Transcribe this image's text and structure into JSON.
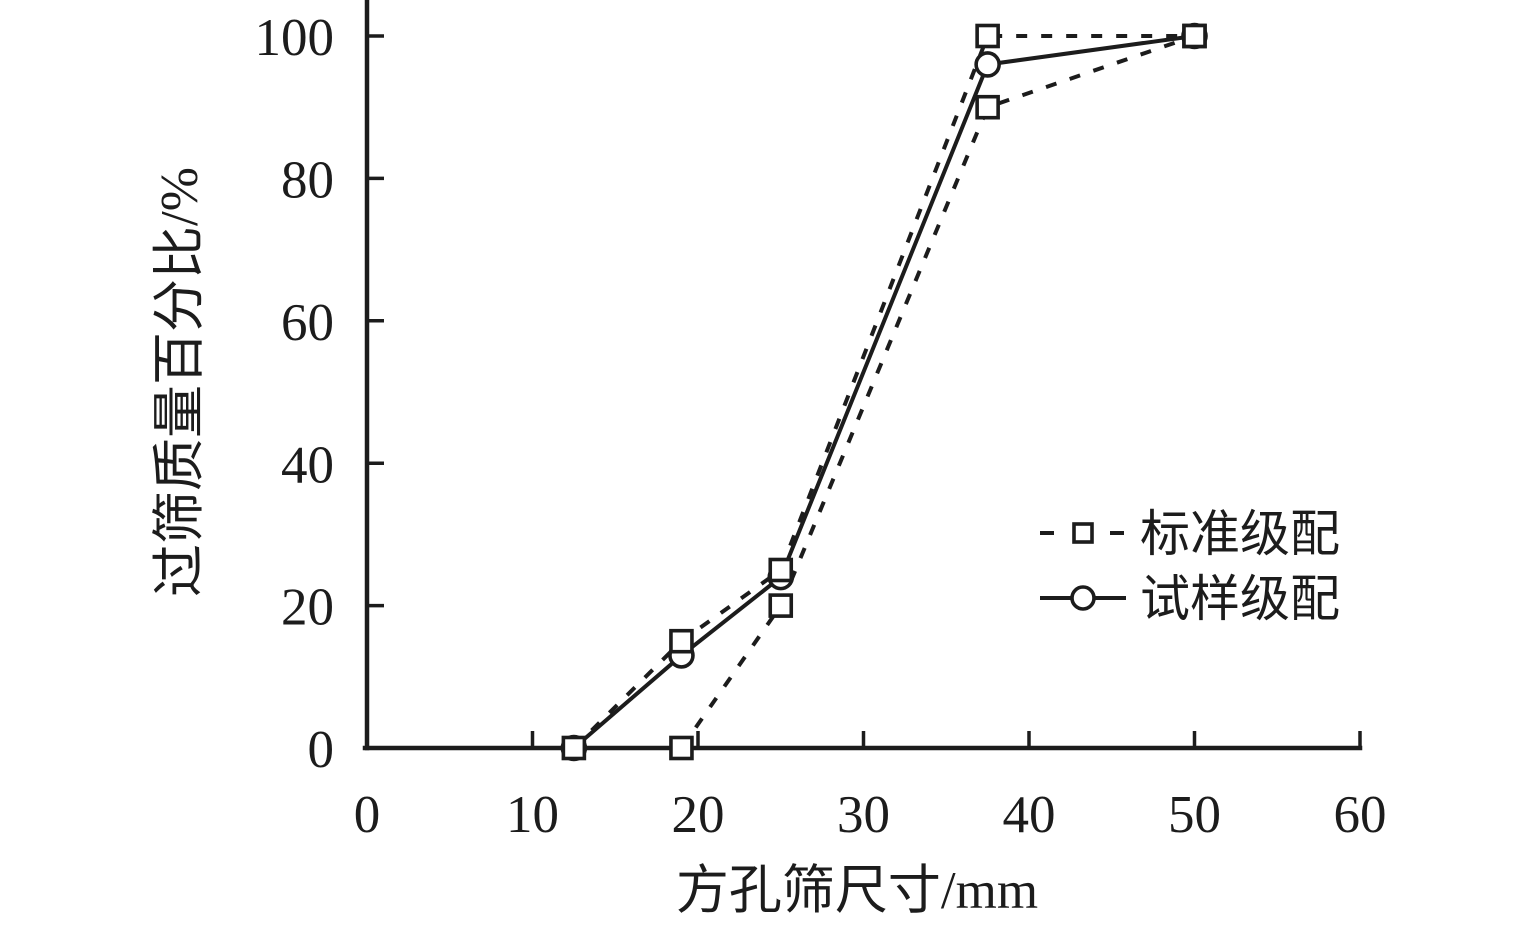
{
  "chart_data": {
    "type": "line",
    "title": "",
    "xlabel": "方孔筛尺寸/mm",
    "ylabel": "过筛质量百分比/%",
    "xlim": [
      0,
      60
    ],
    "ylim": [
      0,
      100
    ],
    "xticks": [
      0,
      10,
      20,
      30,
      40,
      50,
      60
    ],
    "yticks": [
      0,
      20,
      40,
      60,
      80,
      100
    ],
    "grid": false,
    "legend_position": "right-middle",
    "series": [
      {
        "name": "标准级配",
        "role": "standard-upper-limit",
        "line": "dotted",
        "marker": "square",
        "points": [
          [
            12.5,
            0
          ],
          [
            19,
            15
          ],
          [
            25,
            25
          ],
          [
            37.5,
            100
          ],
          [
            50,
            100
          ]
        ]
      },
      {
        "name": "标准级配",
        "role": "standard-lower-limit",
        "line": "dotted",
        "marker": "square",
        "points": [
          [
            19,
            0
          ],
          [
            25,
            20
          ],
          [
            37.5,
            90
          ],
          [
            50,
            100
          ]
        ]
      },
      {
        "name": "试样级配",
        "role": "sample-gradation",
        "line": "solid",
        "marker": "circle",
        "points": [
          [
            12.5,
            0
          ],
          [
            19,
            13
          ],
          [
            25,
            24
          ],
          [
            37.5,
            96
          ],
          [
            50,
            100
          ]
        ]
      }
    ],
    "legend": [
      {
        "label": "标准级配",
        "line": "dotted",
        "marker": "square"
      },
      {
        "label": "试样级配",
        "line": "solid",
        "marker": "circle"
      }
    ],
    "colors": {
      "stroke": "#1c1c1c",
      "background": "#ffffff",
      "marker_fill": "#ffffff"
    }
  }
}
